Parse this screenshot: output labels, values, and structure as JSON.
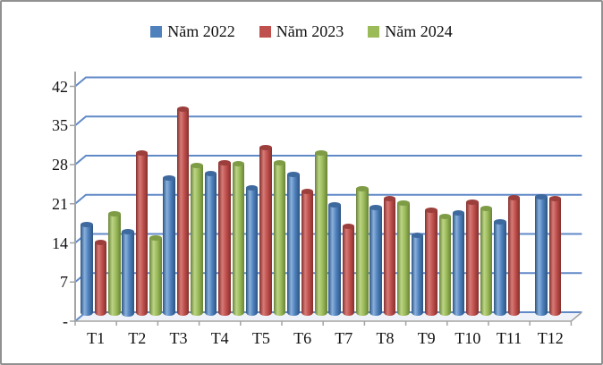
{
  "chart_data": {
    "type": "bar",
    "subtype": "3d-cylinder-clustered",
    "title": "",
    "xlabel": "",
    "ylabel": "",
    "categories": [
      "T1",
      "T2",
      "T3",
      "T4",
      "T5",
      "T6",
      "T7",
      "T8",
      "T9",
      "T10",
      "T11",
      "T12"
    ],
    "series": [
      {
        "name": "Năm 2022",
        "color": "#4F81BD",
        "color_light": "#8AB1DD",
        "color_dark": "#2C5481",
        "color_cap": "#3E699E",
        "values": [
          16.3,
          15.0,
          24.5,
          25.3,
          22.7,
          25.1,
          19.7,
          19.3,
          14.4,
          18.3,
          16.8,
          21.2
        ]
      },
      {
        "name": "Năm 2023",
        "color": "#C0504D",
        "color_light": "#D67B77",
        "color_dark": "#832F2D",
        "color_cap": "#9C3E3B",
        "values": [
          13.1,
          28.9,
          36.8,
          27.3,
          29.9,
          22.1,
          16.0,
          20.8,
          18.8,
          20.3,
          21.0,
          20.9
        ]
      },
      {
        "name": "Năm 2024",
        "color": "#9BBB59",
        "color_light": "#BCD486",
        "color_dark": "#688237",
        "color_cap": "#7E9C45",
        "values": [
          18.1,
          13.9,
          26.8,
          27.0,
          27.2,
          28.9,
          22.6,
          20.1,
          17.7,
          19.1,
          null,
          null
        ]
      }
    ],
    "y_axis": {
      "tick_labels": [
        "42",
        "35",
        "28",
        "21",
        "14",
        "7",
        "-"
      ],
      "tick_values": [
        42,
        35,
        28,
        21,
        14,
        7,
        0
      ],
      "min": 0,
      "max": 42,
      "major_unit": 7
    },
    "grid": true,
    "legend_position": "top"
  },
  "colors": {
    "gridline": "#6089C7",
    "axis": "#A3A3A3",
    "floor_fill": "#EFF3F9",
    "border": "#919191",
    "background": "#FFFFFF"
  }
}
